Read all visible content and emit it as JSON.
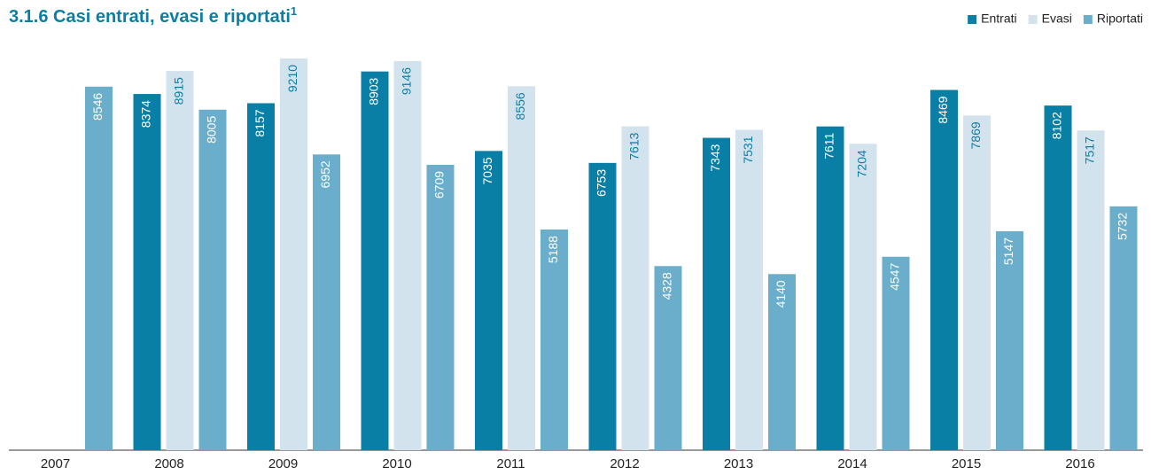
{
  "chart_data": {
    "type": "bar",
    "title": "3.1.6 Casi entrati, evasi e riportati",
    "title_note": "1",
    "categories": [
      "2007",
      "2008",
      "2009",
      "2010",
      "2011",
      "2012",
      "2013",
      "2014",
      "2015",
      "2016"
    ],
    "series": [
      {
        "name": "Entrati",
        "color": "#0a7fa6",
        "values": [
          null,
          8374,
          8157,
          8903,
          7035,
          6753,
          7343,
          7611,
          8469,
          8102
        ]
      },
      {
        "name": "Evasi",
        "color": "#d3e3ed",
        "values": [
          null,
          8915,
          9210,
          9146,
          8556,
          7613,
          7531,
          7204,
          7869,
          7517
        ]
      },
      {
        "name": "Riportati",
        "color": "#6aaecb",
        "values": [
          8546,
          8005,
          6952,
          6709,
          5188,
          4328,
          4140,
          4547,
          5147,
          5732
        ]
      }
    ],
    "ylim": [
      0,
      10000
    ],
    "legend": "top-right"
  }
}
